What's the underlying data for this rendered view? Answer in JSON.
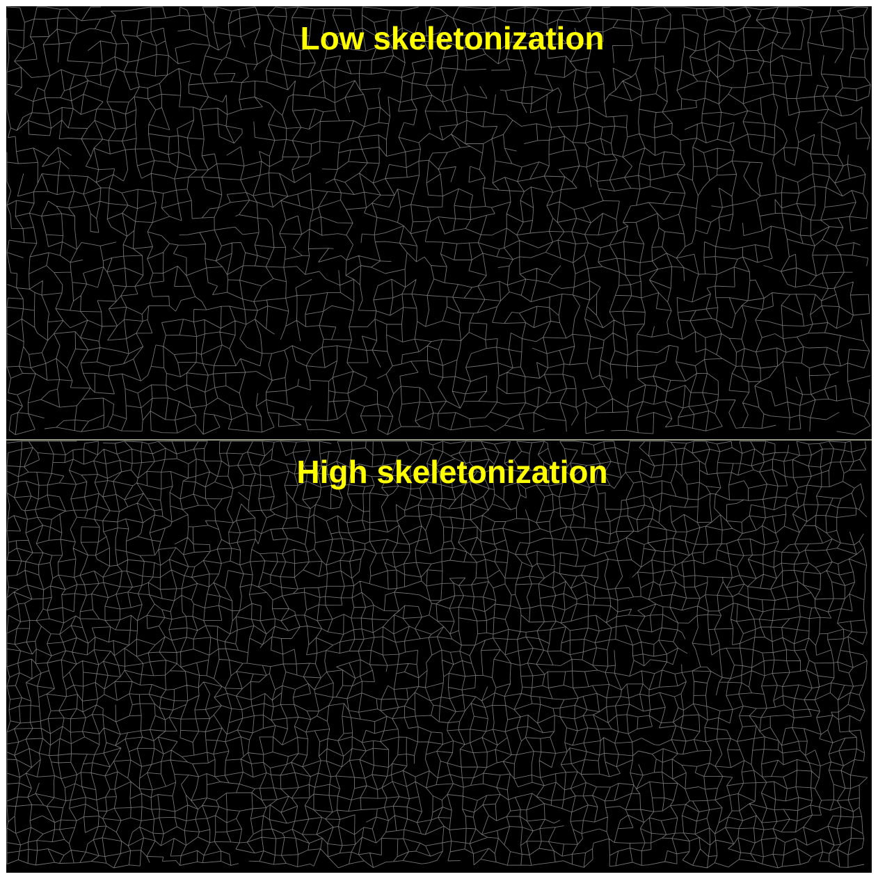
{
  "panels": [
    {
      "label": "Low skeletonization"
    },
    {
      "label": "High skeletonization"
    }
  ]
}
